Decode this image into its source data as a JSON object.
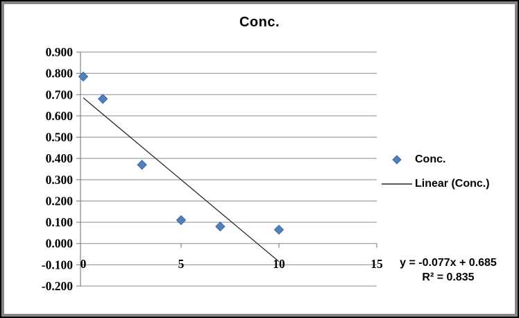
{
  "chart_data": {
    "type": "scatter",
    "title": "Conc.",
    "series": [
      {
        "name": "Conc.",
        "marker": "diamond",
        "x": [
          0,
          1,
          3,
          5,
          7,
          10
        ],
        "y": [
          0.785,
          0.68,
          0.37,
          0.11,
          0.08,
          0.065
        ]
      }
    ],
    "trendline": {
      "label": "Linear (Conc.)",
      "slope": -0.077,
      "intercept": 0.685,
      "r_squared": 0.835,
      "x_start": 0,
      "x_end": 10
    },
    "x_axis": {
      "min": 0,
      "max": 15,
      "ticks": [
        0,
        5,
        10,
        15
      ],
      "tick_labels": [
        "0",
        "5",
        "10",
        "15"
      ]
    },
    "y_axis": {
      "max": 0.9,
      "min": -0.2,
      "tick_step": 0.1,
      "tick_labels": [
        "0.900",
        "0.800",
        "0.700",
        "0.600",
        "0.500",
        "0.400",
        "0.300",
        "0.200",
        "0.100",
        "0.000",
        "-0.100",
        "-0.200"
      ]
    },
    "legend": {
      "position": "right",
      "entries": [
        {
          "label": "Conc.",
          "marker": "diamond"
        },
        {
          "label": "Linear (Conc.)",
          "marker": "line"
        }
      ]
    },
    "annotation": {
      "line1": "y = -0.077x + 0.685",
      "line2": "R² = 0.835"
    },
    "grid": "horizontal-only",
    "colors": {
      "marker_fill": "#4F81BD",
      "marker_stroke": "#3A68A5",
      "trendline": "#262626",
      "gridline": "#8C8C8C",
      "axis": "#6E6E6E",
      "text": "#000000",
      "frame_outer": "#000000",
      "frame_inner": "#848484"
    }
  }
}
